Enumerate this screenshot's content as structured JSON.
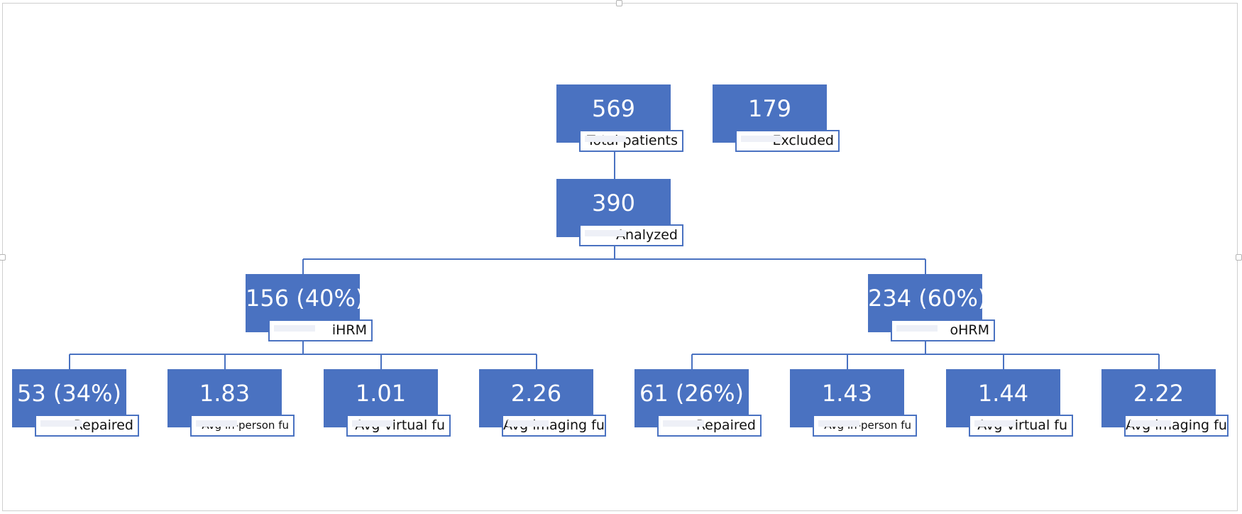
{
  "diagram": {
    "root": {
      "value": "569",
      "label": "Total patients"
    },
    "excluded": {
      "value": "179",
      "label": "Excluded"
    },
    "analyzed": {
      "value": "390",
      "label": "Analyzed"
    },
    "groups": [
      {
        "value": "156 (40%)",
        "label": "iHRM",
        "children": [
          {
            "value": "53 (34%)",
            "label": "Repaired"
          },
          {
            "value": "1.83",
            "label": "Avg in-person fu"
          },
          {
            "value": "1.01",
            "label": "Avg virtual fu"
          },
          {
            "value": "2.26",
            "label": "Avg imaging fu"
          }
        ]
      },
      {
        "value": "234 (60%)",
        "label": "oHRM",
        "children": [
          {
            "value": "61 (26%)",
            "label": "Repaired"
          },
          {
            "value": "1.43",
            "label": "Avg in-person fu"
          },
          {
            "value": "1.44",
            "label": "Avg virtual fu"
          },
          {
            "value": "2.22",
            "label": "Avg imaging fu"
          }
        ]
      }
    ]
  },
  "colors": {
    "box_fill": "#4a72c1",
    "connector": "#4a72c1",
    "label_text": "#111111"
  }
}
